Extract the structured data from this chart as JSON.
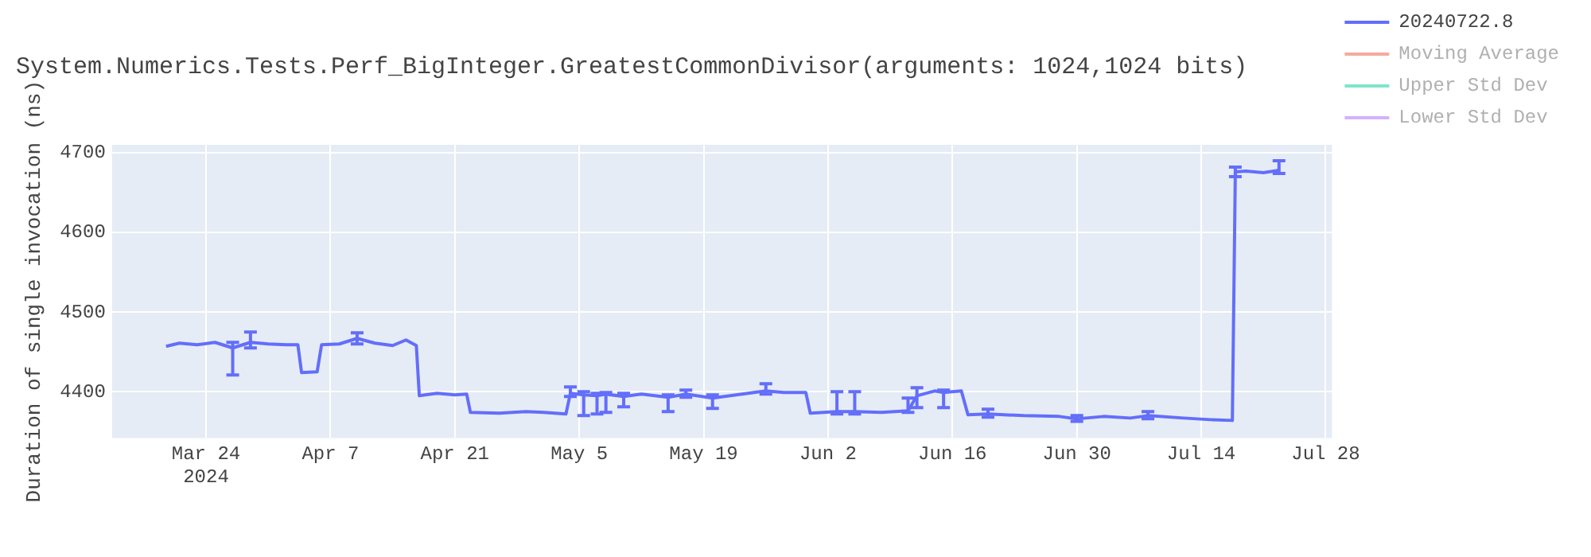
{
  "chart_data": {
    "type": "line",
    "title": "System.Numerics.Tests.Perf_BigInteger.GreatestCommonDivisor(arguments: 1024,1024 bits)",
    "ylabel": "Duration of single invocation (ns)",
    "x": [
      "2024-03-19T12:00",
      "2024-03-21",
      "2024-03-23",
      "2024-03-25",
      "2024-03-27",
      "2024-03-29",
      "2024-03-31",
      "2024-04-02",
      "2024-04-03T08:00",
      "2024-04-03T18:00",
      "2024-04-05T12:00",
      "2024-04-06",
      "2024-04-08",
      "2024-04-10",
      "2024-04-12",
      "2024-04-14",
      "2024-04-15T12:00",
      "2024-04-16T16:00",
      "2024-04-17",
      "2024-04-19",
      "2024-04-21",
      "2024-04-22T08:00",
      "2024-04-22T18:00",
      "2024-04-26",
      "2024-04-29",
      "2024-05-01",
      "2024-05-03T12:00",
      "2024-05-04",
      "2024-05-05T12:00",
      "2024-05-07",
      "2024-05-08",
      "2024-05-10",
      "2024-05-12",
      "2024-05-15",
      "2024-05-17",
      "2024-05-20",
      "2024-05-22",
      "2024-05-24",
      "2024-05-26",
      "2024-05-28",
      "2024-05-30T12:00",
      "2024-05-31",
      "2024-06-03",
      "2024-06-05",
      "2024-06-08",
      "2024-06-11",
      "2024-06-12",
      "2024-06-14",
      "2024-06-15",
      "2024-06-17",
      "2024-06-17T18:00",
      "2024-06-20",
      "2024-06-24",
      "2024-06-28",
      "2024-06-30",
      "2024-07-03",
      "2024-07-06",
      "2024-07-08",
      "2024-07-12",
      "2024-07-15",
      "2024-07-17T12:00",
      "2024-07-17T20:00",
      "2024-07-19",
      "2024-07-21",
      "2024-07-22T18:00"
    ],
    "series": [
      {
        "name": "20240722.8",
        "color": "#636efa",
        "values": [
          4457,
          4461,
          4459,
          4462,
          4455,
          4462,
          4460,
          4459,
          4459,
          4424,
          4425,
          4459,
          4460,
          4467,
          4461,
          4458,
          4465,
          4458,
          4395,
          4398,
          4396,
          4397,
          4374,
          4373,
          4375,
          4374,
          4372,
          4398,
          4396,
          4395,
          4397,
          4394,
          4397,
          4393,
          4397,
          4392,
          4395,
          4398,
          4401,
          4399,
          4399,
          4373,
          4375,
          4375,
          4374,
          4376,
          4395,
          4401,
          4399,
          4401,
          4371,
          4372,
          4370,
          4369,
          4366,
          4369,
          4367,
          4370,
          4367,
          4365,
          4364,
          4676,
          4677,
          4675,
          4678
        ],
        "errors": [
          null,
          null,
          null,
          null,
          [
            4421,
            4462
          ],
          [
            4455,
            4475
          ],
          null,
          null,
          null,
          null,
          null,
          null,
          null,
          [
            4460,
            4474
          ],
          null,
          null,
          null,
          null,
          null,
          null,
          null,
          null,
          null,
          null,
          null,
          null,
          null,
          [
            4394,
            4406
          ],
          [
            4370,
            4400
          ],
          [
            4372,
            4398
          ],
          [
            4374,
            4399
          ],
          [
            4381,
            4398
          ],
          null,
          [
            4375,
            4396
          ],
          [
            4393,
            4402
          ],
          [
            4379,
            4396
          ],
          null,
          null,
          [
            4397,
            4410
          ],
          null,
          null,
          null,
          [
            4372,
            4400
          ],
          [
            4372,
            4400
          ],
          null,
          [
            4374,
            4392
          ],
          [
            4380,
            4405
          ],
          null,
          [
            4380,
            4402
          ],
          null,
          null,
          [
            4368,
            4378
          ],
          null,
          null,
          [
            4363,
            4370
          ],
          null,
          null,
          [
            4366,
            4375
          ],
          null,
          null,
          null,
          [
            4670,
            4682
          ],
          null,
          null,
          [
            4674,
            4690
          ]
        ]
      },
      {
        "name": "Moving Average",
        "color": "#ef553b",
        "values": [
          null,
          null,
          null,
          null,
          null,
          null,
          null,
          null,
          null,
          null,
          null,
          null,
          null,
          null,
          null,
          null,
          null,
          null,
          null,
          null,
          null,
          null,
          null,
          null,
          null,
          null,
          null,
          null,
          null,
          null,
          null,
          null,
          null,
          null,
          null,
          null,
          null,
          null,
          null,
          null,
          null,
          null,
          null,
          null,
          null,
          null,
          null,
          null,
          null,
          null,
          null,
          null,
          null,
          null,
          null,
          null,
          null,
          null,
          null,
          null,
          null,
          null,
          null,
          null,
          null
        ]
      },
      {
        "name": "Upper Std Dev",
        "color": "#00cc96",
        "values": [
          null,
          null,
          null,
          null,
          null,
          null,
          null,
          null,
          null,
          null,
          null,
          null,
          null,
          null,
          null,
          null,
          null,
          null,
          null,
          null,
          null,
          null,
          null,
          null,
          null,
          null,
          null,
          null,
          null,
          null,
          null,
          null,
          null,
          null,
          null,
          null,
          null,
          null,
          null,
          null,
          null,
          null,
          null,
          null,
          null,
          null,
          null,
          null,
          null,
          null,
          null,
          null,
          null,
          null,
          null,
          null,
          null,
          null,
          null,
          null,
          null,
          null,
          null,
          null,
          null
        ]
      },
      {
        "name": "Lower Std Dev",
        "color": "#ab63fa",
        "values": [
          null,
          null,
          null,
          null,
          null,
          null,
          null,
          null,
          null,
          null,
          null,
          null,
          null,
          null,
          null,
          null,
          null,
          null,
          null,
          null,
          null,
          null,
          null,
          null,
          null,
          null,
          null,
          null,
          null,
          null,
          null,
          null,
          null,
          null,
          null,
          null,
          null,
          null,
          null,
          null,
          null,
          null,
          null,
          null,
          null,
          null,
          null,
          null,
          null,
          null,
          null,
          null,
          null,
          null,
          null,
          null,
          null,
          null,
          null,
          null,
          null,
          null,
          null,
          null,
          null
        ]
      }
    ],
    "xlim": [
      "2024-03-13T10:00",
      "2024-07-28T17:00"
    ],
    "xticks": [
      {
        "value": "2024-03-24",
        "label": "Mar 24\n2024"
      },
      {
        "value": "2024-04-07",
        "label": "Apr 7"
      },
      {
        "value": "2024-04-21",
        "label": "Apr 21"
      },
      {
        "value": "2024-05-05",
        "label": "May 5"
      },
      {
        "value": "2024-05-19",
        "label": "May 19"
      },
      {
        "value": "2024-06-02",
        "label": "Jun 2"
      },
      {
        "value": "2024-06-16",
        "label": "Jun 16"
      },
      {
        "value": "2024-06-30",
        "label": "Jun 30"
      },
      {
        "value": "2024-07-14",
        "label": "Jul 14"
      },
      {
        "value": "2024-07-28",
        "label": "Jul 28"
      }
    ],
    "ylim": [
      4342,
      4710
    ],
    "yticks": [
      4400,
      4500,
      4600,
      4700
    ],
    "grid": true,
    "legend": "top right"
  }
}
